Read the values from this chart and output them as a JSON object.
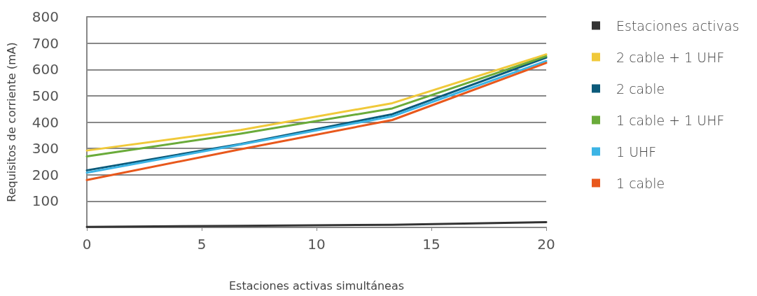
{
  "chart_data": {
    "type": "line",
    "xlabel": "Estaciones activas simultáneas",
    "ylabel": "Requisitos de corriente (mA)",
    "x": [
      0,
      6.7,
      13.3,
      20
    ],
    "series": [
      {
        "name": "Estaciones activas",
        "color": "#333333",
        "values": [
          2,
          6,
          10,
          20
        ]
      },
      {
        "name": "2 cable + 1 UHF",
        "color": "#f0c93a",
        "values": [
          292,
          370,
          472,
          657
        ]
      },
      {
        "name": "2 cable",
        "color": "#0b5a7a",
        "values": [
          217,
          317,
          430,
          645
        ]
      },
      {
        "name": "1 cable + 1 UHF",
        "color": "#6aab3a",
        "values": [
          270,
          356,
          452,
          650
        ]
      },
      {
        "name": "1 UHF",
        "color": "#3cb4e5",
        "values": [
          208,
          315,
          422,
          632
        ]
      },
      {
        "name": "1 cable",
        "color": "#e8581c",
        "values": [
          180,
          297,
          408,
          625
        ]
      }
    ],
    "xlim": [
      0,
      20
    ],
    "xticks": [
      0,
      5,
      10,
      15,
      20
    ],
    "ylim": [
      0,
      800
    ],
    "yticks": [
      100,
      200,
      300,
      400,
      500,
      600,
      700,
      800
    ],
    "grid": "y",
    "legend": "right"
  }
}
